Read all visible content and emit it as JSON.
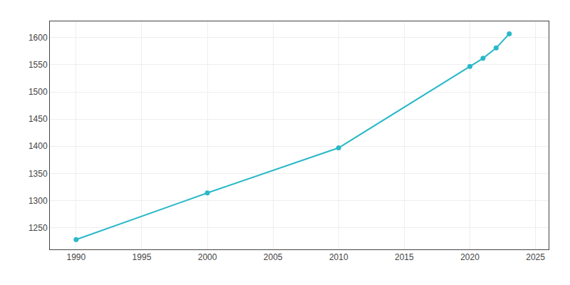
{
  "chart_data": {
    "type": "line",
    "x": [
      1990,
      2000,
      2010,
      2020,
      2021,
      2022,
      2023
    ],
    "values": [
      1228,
      1314,
      1397,
      1547,
      1562,
      1581,
      1607
    ],
    "color": "#29B8C8",
    "marker": "circle",
    "line_style": "solid",
    "xlim": [
      1988,
      2026
    ],
    "ylim": [
      1210,
      1630
    ],
    "xticks": [
      1990,
      1995,
      2000,
      2005,
      2010,
      2015,
      2020,
      2025
    ],
    "yticks": [
      1250,
      1300,
      1350,
      1400,
      1450,
      1500,
      1550,
      1600
    ],
    "grid": true
  }
}
